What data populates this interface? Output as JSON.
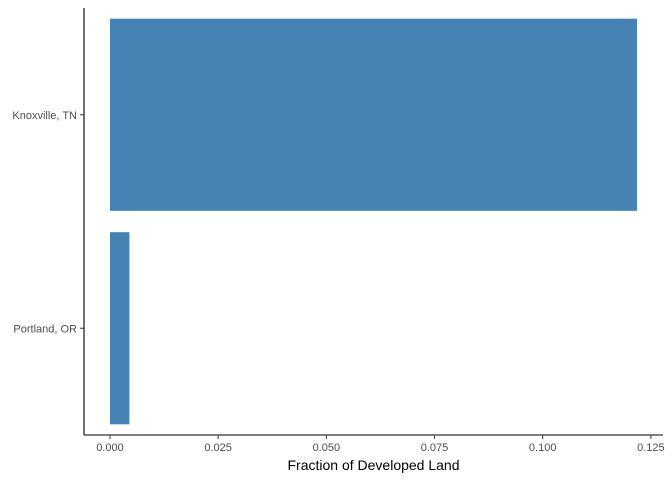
{
  "chart_data": {
    "type": "bar",
    "orientation": "horizontal",
    "categories": [
      "Knoxville, TN",
      "Portland, OR"
    ],
    "values": [
      0.1218,
      0.0045
    ],
    "xlabel": "Fraction of Developed Land",
    "ylabel": "",
    "xlim": [
      -0.006,
      0.1278
    ],
    "xticks": [
      0.0,
      0.025,
      0.05,
      0.075,
      0.1,
      0.125
    ],
    "xtick_labels": [
      "0.000",
      "0.025",
      "0.050",
      "0.075",
      "0.100",
      "0.125"
    ],
    "grid": false,
    "legend": "none",
    "bar_color": "#4682B4",
    "axis_color": "#000000",
    "tick_label_color": "#4d4d4d"
  }
}
